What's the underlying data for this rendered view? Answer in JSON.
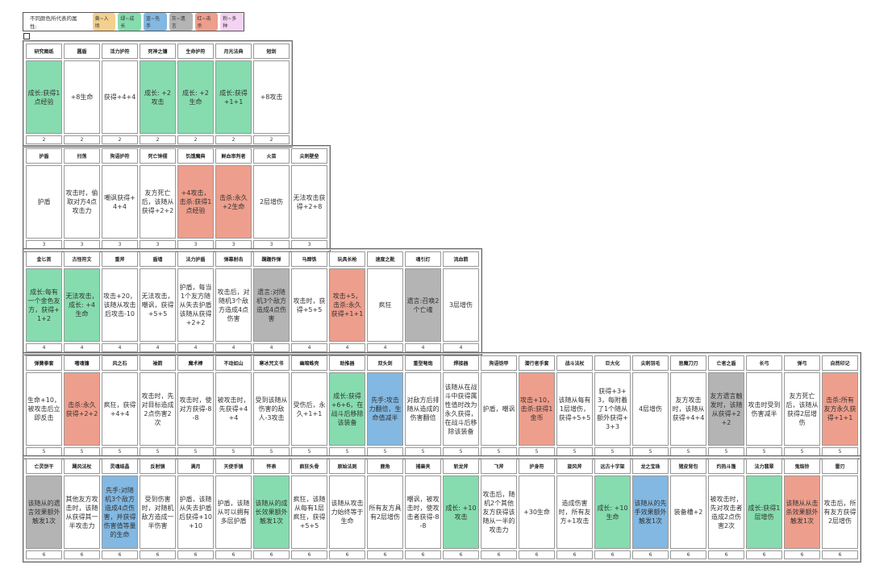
{
  "legend": {
    "label": "不同颜色所代表的属性:",
    "items": [
      {
        "text": "黄~入场",
        "color": "#f3d08e"
      },
      {
        "text": "绿~成长",
        "color": "#86dcae"
      },
      {
        "text": "蓝~先手",
        "color": "#82b8e2"
      },
      {
        "text": "灰~遗言",
        "color": "#b4b4b4"
      },
      {
        "text": "红~击杀",
        "color": "#ee9e8c"
      },
      {
        "text": "粉~多种",
        "color": "#f4d2f2"
      }
    ]
  },
  "colors": {
    "g": "#86dcae",
    "r": "#ee9e8c",
    "b": "#82b8e2",
    "y": "#b4b4b4",
    "w": "#ffffff"
  },
  "groups": [
    {
      "tier": "2",
      "items": [
        {
          "name": "研究图纸",
          "desc": "成长:获得1点经验",
          "c": "g"
        },
        {
          "name": "圆盾",
          "desc": "+8生命",
          "c": "w"
        },
        {
          "name": "活力护符",
          "desc": "获得+4+4",
          "c": "w"
        },
        {
          "name": "死神之镰",
          "desc": "成长: +2攻击",
          "c": "g"
        },
        {
          "name": "生命护符",
          "desc": "成长: +2生命",
          "c": "g"
        },
        {
          "name": "月光法典",
          "desc": "成长:获得+1+1",
          "c": "g"
        },
        {
          "name": "短剑",
          "desc": "+8攻击",
          "c": "w"
        }
      ]
    },
    {
      "tier": "3",
      "items": [
        {
          "name": "护盾",
          "desc": "护盾",
          "c": "w"
        },
        {
          "name": "扫荡",
          "desc": "攻击时，偷取对方4点攻击力",
          "c": "w"
        },
        {
          "name": "狗语护符",
          "desc": "嘲讽获得+4+4",
          "c": "w"
        },
        {
          "name": "死亡钟摆",
          "desc": "友方死亡后，该随从获得+2+2",
          "c": "w"
        },
        {
          "name": "饥饿魔典",
          "desc": "+4攻击，击杀:获得1点经验",
          "c": "r"
        },
        {
          "name": "鲜血审判者",
          "desc": "击杀:永久+2生命",
          "c": "r"
        },
        {
          "name": "火苗",
          "desc": "2层增伤",
          "c": "w"
        },
        {
          "name": "尖刺壁垒",
          "desc": "无法攻击获得+2+8",
          "c": "w"
        }
      ]
    },
    {
      "tier": "4",
      "items": [
        {
          "name": "金匕首",
          "desc": "成长:每有一个金色友方，获得+1+2",
          "c": "g"
        },
        {
          "name": "古怪符文",
          "desc": "无法攻击，成长: +4生命",
          "c": "g"
        },
        {
          "name": "重斧",
          "desc": "攻击+20，该随从攻击后攻击-10",
          "c": "w"
        },
        {
          "name": "盾墙",
          "desc": "无法攻击，嘲讽，获得+5+5",
          "c": "w"
        },
        {
          "name": "法力护盾",
          "desc": "护盾，每当1个友方随从失去护盾该随从获得+2+2",
          "c": "w"
        },
        {
          "name": "弹幕射击",
          "desc": "攻击后，对随机3个敌方造成4点伤害",
          "c": "w"
        },
        {
          "name": "蹒跚炸弹",
          "desc": "遗言:对随机3个敌方造成4点伤害",
          "c": "y"
        },
        {
          "name": "马蹄铁",
          "desc": "攻击时，获得+5+5",
          "c": "w"
        },
        {
          "name": "玩具长枪",
          "desc": "攻击+5，击杀:永久获得+1+1",
          "c": "r"
        },
        {
          "name": "速度之靴",
          "desc": "疯狂",
          "c": "w"
        },
        {
          "name": "魂引灯",
          "desc": "遗言:召唤2个亡魂",
          "c": "y"
        },
        {
          "name": "流血箭",
          "desc": "3层增伤",
          "c": "w"
        }
      ]
    },
    {
      "tier": "5",
      "items": [
        {
          "name": "弹簧拳套",
          "desc": "生命+10，被攻击后立即反击",
          "c": "w"
        },
        {
          "name": "嗜魂镰",
          "desc": "击杀:永久获得+2+2",
          "c": "r"
        },
        {
          "name": "风之石",
          "desc": "疯狂，获得+4+4",
          "c": "w"
        },
        {
          "name": "袖箭",
          "desc": "攻击时，先对目标造成2点伤害2次",
          "c": "w"
        },
        {
          "name": "魔术棒",
          "desc": "攻击时，使对方获得-8-8",
          "c": "w"
        },
        {
          "name": "不动如山",
          "desc": "被攻击时，先获得+4+4",
          "c": "w"
        },
        {
          "name": "寒冰咒文书",
          "desc": "受到该随从伤害的敌人-3攻击",
          "c": "w"
        },
        {
          "name": "幽暗蛛壳",
          "desc": "受伤后，永久+1+1",
          "c": "w"
        },
        {
          "name": "助推器",
          "desc": "成长:获得+6+6，在战斗后移除该装备",
          "c": "g"
        },
        {
          "name": "双头剑",
          "desc": "先手:攻击力翻倍，生命值减半",
          "c": "b"
        },
        {
          "name": "重型弩炮",
          "desc": "对敌方后排随从造成的伤害翻倍",
          "c": "w"
        },
        {
          "name": "焊接器",
          "desc": "该随从在战斗中获得属性值时改为永久获得，在战斗后移除该装备",
          "c": "w"
        },
        {
          "name": "狗语铠甲",
          "desc": "护盾，嘲讽",
          "c": "w"
        },
        {
          "name": "潜行者手套",
          "desc": "攻击+10，击杀:获得1金币",
          "c": "r"
        },
        {
          "name": "战斗法杖",
          "desc": "该随从每有1层增伤，获得+5+5",
          "c": "w"
        },
        {
          "name": "巨大化",
          "desc": "获得+3+3，每附着了1个随从额外获得+3+3",
          "c": "w"
        },
        {
          "name": "尖刺羽毛",
          "desc": "4层增伤",
          "c": "w"
        },
        {
          "name": "恶魔刀刃",
          "desc": "友方攻击时，该随从获得+4+4",
          "c": "w"
        },
        {
          "name": "亡者之盾",
          "desc": "友方遗言触发时，该随从获得+2+2",
          "c": "y"
        },
        {
          "name": "长弓",
          "desc": "攻击时受到伤害减半",
          "c": "w"
        },
        {
          "name": "弹弓",
          "desc": "友方死亡后，该随从获得2层增伤",
          "c": "w"
        },
        {
          "name": "自然印记",
          "desc": "击杀:所有友方永久获得+1+1",
          "c": "r"
        }
      ]
    },
    {
      "tier": "6",
      "items": [
        {
          "name": "亡灵饼干",
          "desc": "该随从的遗言效果额外触发1次",
          "c": "y"
        },
        {
          "name": "飓风法杖",
          "desc": "其他友方攻击时，该随从获得其一半攻击力",
          "c": "w"
        },
        {
          "name": "灵魂结晶",
          "desc": "先手:对随机3个敌方造成4点伤害，并获得伤害值等量的生命",
          "c": "b"
        },
        {
          "name": "反射镜",
          "desc": "受到伤害时，对随机敌方造成一半伤害",
          "c": "w"
        },
        {
          "name": "满月",
          "desc": "护盾，该随从失去护盾后获得+10+10",
          "c": "w"
        },
        {
          "name": "天使手镜",
          "desc": "护盾，该随从可以拥有多层护盾",
          "c": "w"
        },
        {
          "name": "怀表",
          "desc": "该随从的成长效果额外触发1次",
          "c": "g"
        },
        {
          "name": "疯狂头骨",
          "desc": "疯狂，该随从每有1层疯狂，获得+5+5",
          "c": "w"
        },
        {
          "name": "原始法则",
          "desc": "该随从攻击力始终等于生命",
          "c": "w"
        },
        {
          "name": "鹿角",
          "desc": "所有友方具有2层增伤",
          "c": "w"
        },
        {
          "name": "捕兽夹",
          "desc": "嘲讽，被攻击时，使攻击者获得-8-8",
          "c": "w"
        },
        {
          "name": "斩龙斧",
          "desc": "成长: +10攻击",
          "c": "g"
        },
        {
          "name": "飞斧",
          "desc": "攻击后，随机2个其他友方获得该随从一半的攻击力",
          "c": "w"
        },
        {
          "name": "护身符",
          "desc": "+30生命",
          "c": "w"
        },
        {
          "name": "旋风斧",
          "desc": "造成伤害时，所有友方+1攻击",
          "c": "w"
        },
        {
          "name": "远古十字架",
          "desc": "成长: +10生命",
          "c": "g"
        },
        {
          "name": "龙之宝珠",
          "desc": "该随从的先手效果额外触发1次",
          "c": "b"
        },
        {
          "name": "猪皮背包",
          "desc": "装备槽+2",
          "c": "w"
        },
        {
          "name": "灼热斗篷",
          "desc": "被攻击时，先对攻击者造成2点伤害2次",
          "c": "w"
        },
        {
          "name": "法力翡翠",
          "desc": "成长:获得1层增伤",
          "c": "g"
        },
        {
          "name": "鬼焰铃",
          "desc": "该随从从击杀效果额外触发1次",
          "c": "r"
        },
        {
          "name": "雷刃",
          "desc": "攻击后，所有友方获得2层增伤",
          "c": "w"
        }
      ]
    }
  ]
}
